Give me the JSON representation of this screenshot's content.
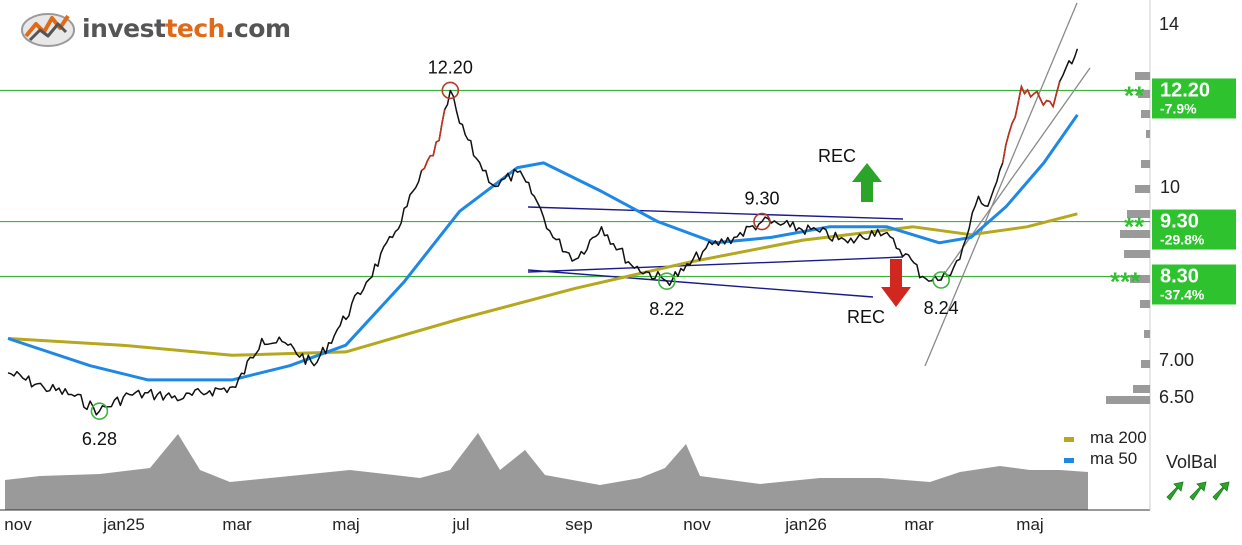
{
  "logo": {
    "text_a": "invest",
    "text_b": "tech",
    "text_c": ".com"
  },
  "chart_data": {
    "type": "line",
    "x_ticks": [
      "nov",
      "jan25",
      "mar",
      "maj",
      "jul",
      "sep",
      "nov",
      "jan26",
      "mar",
      "maj"
    ],
    "y_ticks": [
      "14",
      "10",
      "7.00",
      "6.50"
    ],
    "y_scale": "log",
    "y_range": [
      6.3,
      14.8
    ],
    "grid": false,
    "price_series": {
      "name": "",
      "x": [
        "2024-11-01",
        "2024-11-20",
        "2024-12-05",
        "2024-12-20",
        "2025-01-05",
        "2025-01-20",
        "2025-02-03",
        "2025-02-17",
        "2025-03-03",
        "2025-03-17",
        "2025-03-31",
        "2025-04-14",
        "2025-04-28",
        "2025-05-12",
        "2025-05-26",
        "2025-06-09",
        "2025-06-20",
        "2025-06-26",
        "2025-07-01",
        "2025-07-10",
        "2025-07-20",
        "2025-08-01",
        "2025-08-10",
        "2025-08-20",
        "2025-09-01",
        "2025-09-15",
        "2025-10-01",
        "2025-10-20",
        "2025-10-29",
        "2025-11-10",
        "2025-11-25",
        "2025-12-10",
        "2025-12-25",
        "2026-01-10",
        "2026-01-25",
        "2026-02-10",
        "2026-02-25",
        "2026-03-06",
        "2026-03-16",
        "2026-03-26",
        "2026-04-05",
        "2026-04-10",
        "2026-04-18",
        "2026-04-28",
        "2026-05-08",
        "2026-05-15",
        "2026-05-22",
        "2026-05-28"
      ],
      "y": [
        6.8,
        6.6,
        6.5,
        6.28,
        6.5,
        6.5,
        6.45,
        6.55,
        6.6,
        7.3,
        7.2,
        6.9,
        7.5,
        8.2,
        9.0,
        10.1,
        11.0,
        12.2,
        11.4,
        10.6,
        10.0,
        10.3,
        9.8,
        9.0,
        8.6,
        9.2,
        8.5,
        8.22,
        8.4,
        8.8,
        9.0,
        9.3,
        9.2,
        9.1,
        8.9,
        9.15,
        8.7,
        8.3,
        8.24,
        8.6,
        9.8,
        9.6,
        10.5,
        12.3,
        12.0,
        11.8,
        12.8,
        13.3
      ]
    },
    "series": [
      {
        "name": "ma 200",
        "color": "#b5a81e",
        "x": [
          "2024-11-01",
          "2025-01-01",
          "2025-03-01",
          "2025-05-01",
          "2025-07-01",
          "2025-09-01",
          "2025-11-01",
          "2026-01-01",
          "2026-03-01",
          "2026-04-01",
          "2026-05-01",
          "2026-05-28"
        ],
        "y": [
          7.3,
          7.2,
          7.05,
          7.1,
          7.6,
          8.1,
          8.55,
          8.95,
          9.2,
          9.05,
          9.2,
          9.45
        ]
      },
      {
        "name": "ma 50",
        "color": "#1e88e5",
        "x": [
          "2024-11-01",
          "2024-12-15",
          "2025-01-15",
          "2025-03-01",
          "2025-04-01",
          "2025-05-01",
          "2025-06-01",
          "2025-07-01",
          "2025-08-01",
          "2025-08-15",
          "2025-09-15",
          "2025-10-15",
          "2025-11-15",
          "2025-12-15",
          "2026-01-15",
          "2026-02-15",
          "2026-03-15",
          "2026-04-01",
          "2026-04-20",
          "2026-05-10",
          "2026-05-28"
        ],
        "y": [
          7.3,
          6.9,
          6.7,
          6.7,
          6.9,
          7.2,
          8.2,
          9.5,
          10.4,
          10.5,
          9.9,
          9.3,
          8.9,
          9.0,
          9.2,
          9.2,
          8.9,
          9.0,
          9.6,
          10.5,
          11.6
        ]
      }
    ],
    "levels": [
      {
        "value": 12.2,
        "label": "12.20",
        "pct": "-7.9%",
        "stars": "**"
      },
      {
        "value": 9.3,
        "label": "9.30",
        "pct": "-29.8%",
        "stars": "**"
      },
      {
        "value": 8.3,
        "label": "8.30",
        "pct": "-37.4%",
        "stars": "***"
      }
    ],
    "annotations": [
      {
        "x": "2025-06-26",
        "y": 12.2,
        "text": "12.20",
        "kind": "top"
      },
      {
        "x": "2024-12-20",
        "y": 6.28,
        "text": "6.28",
        "kind": "bottom"
      },
      {
        "x": "2025-10-20",
        "y": 8.22,
        "text": "8.22",
        "kind": "bottom"
      },
      {
        "x": "2025-12-10",
        "y": 9.3,
        "text": "9.30",
        "kind": "top"
      },
      {
        "x": "2026-03-16",
        "y": 8.24,
        "text": "8.24",
        "kind": "bottom"
      }
    ],
    "signals": [
      {
        "text": "REC",
        "direction": "up",
        "color": "#2aa52a"
      },
      {
        "text": "REC",
        "direction": "down",
        "color": "#d0281e"
      }
    ],
    "legend": [
      {
        "name": "ma  200",
        "color": "#b5a81e"
      },
      {
        "name": "ma  50",
        "color": "#1e88e5"
      }
    ],
    "volume_indicator": {
      "label": "VolBal",
      "arrows": [
        "up",
        "up",
        "up"
      ],
      "color": "#2aa52a"
    }
  }
}
